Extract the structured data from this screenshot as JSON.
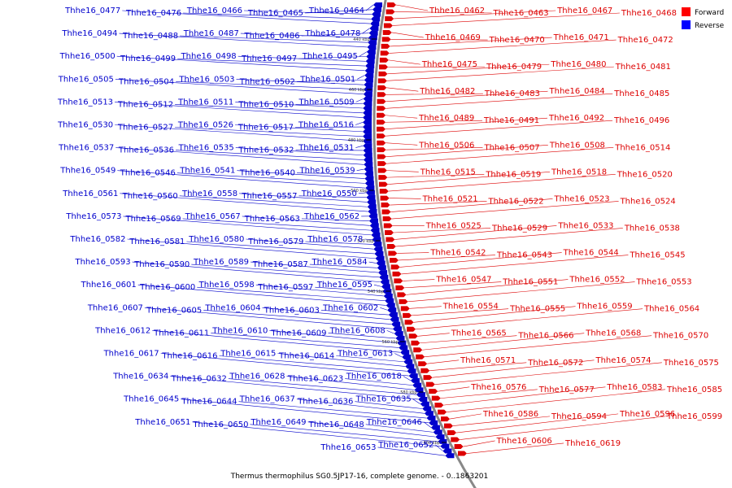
{
  "caption": "Thermus thermophilus SG0.5JP17-16, complete genome. - 0..1863201",
  "legend": {
    "items": [
      {
        "label": "Forward",
        "color": "#ff0000"
      },
      {
        "label": "Reverse",
        "color": "#0000ff"
      }
    ]
  },
  "colors": {
    "forward": "#dd0000",
    "reverse": "#0000cc",
    "backbone": "#888888"
  },
  "ticks": [
    "440 kbp",
    "460 kbp",
    "480 kbp",
    "500 kbp",
    "520 kbp",
    "540 kbp",
    "560 kbp",
    "580 kbp",
    "600 kbp"
  ],
  "genes_forward": [
    "Thhe16_0462",
    "Thhe16_0463",
    "Thhe16_0467",
    "Thhe16_0468",
    "Thhe16_0469",
    "Thhe16_0470",
    "Thhe16_0471",
    "Thhe16_0472",
    "Thhe16_0475",
    "Thhe16_0479",
    "Thhe16_0480",
    "Thhe16_0481",
    "Thhe16_0482",
    "Thhe16_0483",
    "Thhe16_0484",
    "Thhe16_0485",
    "Thhe16_0489",
    "Thhe16_0491",
    "Thhe16_0492",
    "Thhe16_0496",
    "Thhe16_0506",
    "Thhe16_0507",
    "Thhe16_0508",
    "Thhe16_0514",
    "Thhe16_0515",
    "Thhe16_0519",
    "Thhe16_0518",
    "Thhe16_0520",
    "Thhe16_0521",
    "Thhe16_0522",
    "Thhe16_0523",
    "Thhe16_0524",
    "Thhe16_0525",
    "Thhe16_0529",
    "Thhe16_0533",
    "Thhe16_0538",
    "Thhe16_0542",
    "Thhe16_0543",
    "Thhe16_0544",
    "Thhe16_0545",
    "Thhe16_0547",
    "Thhe16_0551",
    "Thhe16_0552",
    "Thhe16_0553",
    "Thhe16_0554",
    "Thhe16_0555",
    "Thhe16_0559",
    "Thhe16_0564",
    "Thhe16_0565",
    "Thhe16_0566",
    "Thhe16_0568",
    "Thhe16_0570",
    "Thhe16_0571",
    "Thhe16_0572",
    "Thhe16_0574",
    "Thhe16_0575",
    "Thhe16_0576",
    "Thhe16_0577",
    "Thhe16_0583",
    "Thhe16_0585",
    "Thhe16_0586",
    "Thhe16_0594",
    "Thhe16_0596",
    "Thhe16_0599",
    "Thhe16_0606",
    "Thhe16_0619"
  ],
  "genes_reverse": [
    "Thhe16_0464",
    "Thhe16_0465",
    "Thhe16_0466",
    "Thhe16_0476",
    "Thhe16_0477",
    "Thhe16_0478",
    "Thhe16_0486",
    "Thhe16_0487",
    "Thhe16_0488",
    "Thhe16_0494",
    "Thhe16_0495",
    "Thhe16_0497",
    "Thhe16_0498",
    "Thhe16_0499",
    "Thhe16_0500",
    "Thhe16_0501",
    "Thhe16_0502",
    "Thhe16_0503",
    "Thhe16_0504",
    "Thhe16_0505",
    "Thhe16_0509",
    "Thhe16_0510",
    "Thhe16_0511",
    "Thhe16_0512",
    "Thhe16_0513",
    "Thhe16_0516",
    "Thhe16_0517",
    "Thhe16_0526",
    "Thhe16_0527",
    "Thhe16_0530",
    "Thhe16_0531",
    "Thhe16_0532",
    "Thhe16_0535",
    "Thhe16_0536",
    "Thhe16_0537",
    "Thhe16_0539",
    "Thhe16_0540",
    "Thhe16_0541",
    "Thhe16_0546",
    "Thhe16_0549",
    "Thhe16_0550",
    "Thhe16_0557",
    "Thhe16_0558",
    "Thhe16_0560",
    "Thhe16_0561",
    "Thhe16_0562",
    "Thhe16_0563",
    "Thhe16_0567",
    "Thhe16_0569",
    "Thhe16_0573",
    "Thhe16_0578",
    "Thhe16_0579",
    "Thhe16_0580",
    "Thhe16_0581",
    "Thhe16_0582",
    "Thhe16_0584",
    "Thhe16_0587",
    "Thhe16_0589",
    "Thhe16_0590",
    "Thhe16_0593",
    "Thhe16_0595",
    "Thhe16_0597",
    "Thhe16_0598",
    "Thhe16_0600",
    "Thhe16_0601",
    "Thhe16_0602",
    "Thhe16_0603",
    "Thhe16_0604",
    "Thhe16_0605",
    "Thhe16_0607",
    "Thhe16_0608",
    "Thhe16_0609",
    "Thhe16_0610",
    "Thhe16_0611",
    "Thhe16_0612",
    "Thhe16_0613",
    "Thhe16_0614",
    "Thhe16_0615",
    "Thhe16_0616",
    "Thhe16_0617",
    "Thhe16_0618",
    "Thhe16_0623",
    "Thhe16_0628",
    "Thhe16_0632",
    "Thhe16_0634",
    "Thhe16_0635",
    "Thhe16_0636",
    "Thhe16_0637",
    "Thhe16_0644",
    "Thhe16_0645",
    "Thhe16_0646",
    "Thhe16_0648",
    "Thhe16_0649",
    "Thhe16_0650",
    "Thhe16_0651",
    "Thhe16_0652",
    "Thhe16_0653"
  ]
}
